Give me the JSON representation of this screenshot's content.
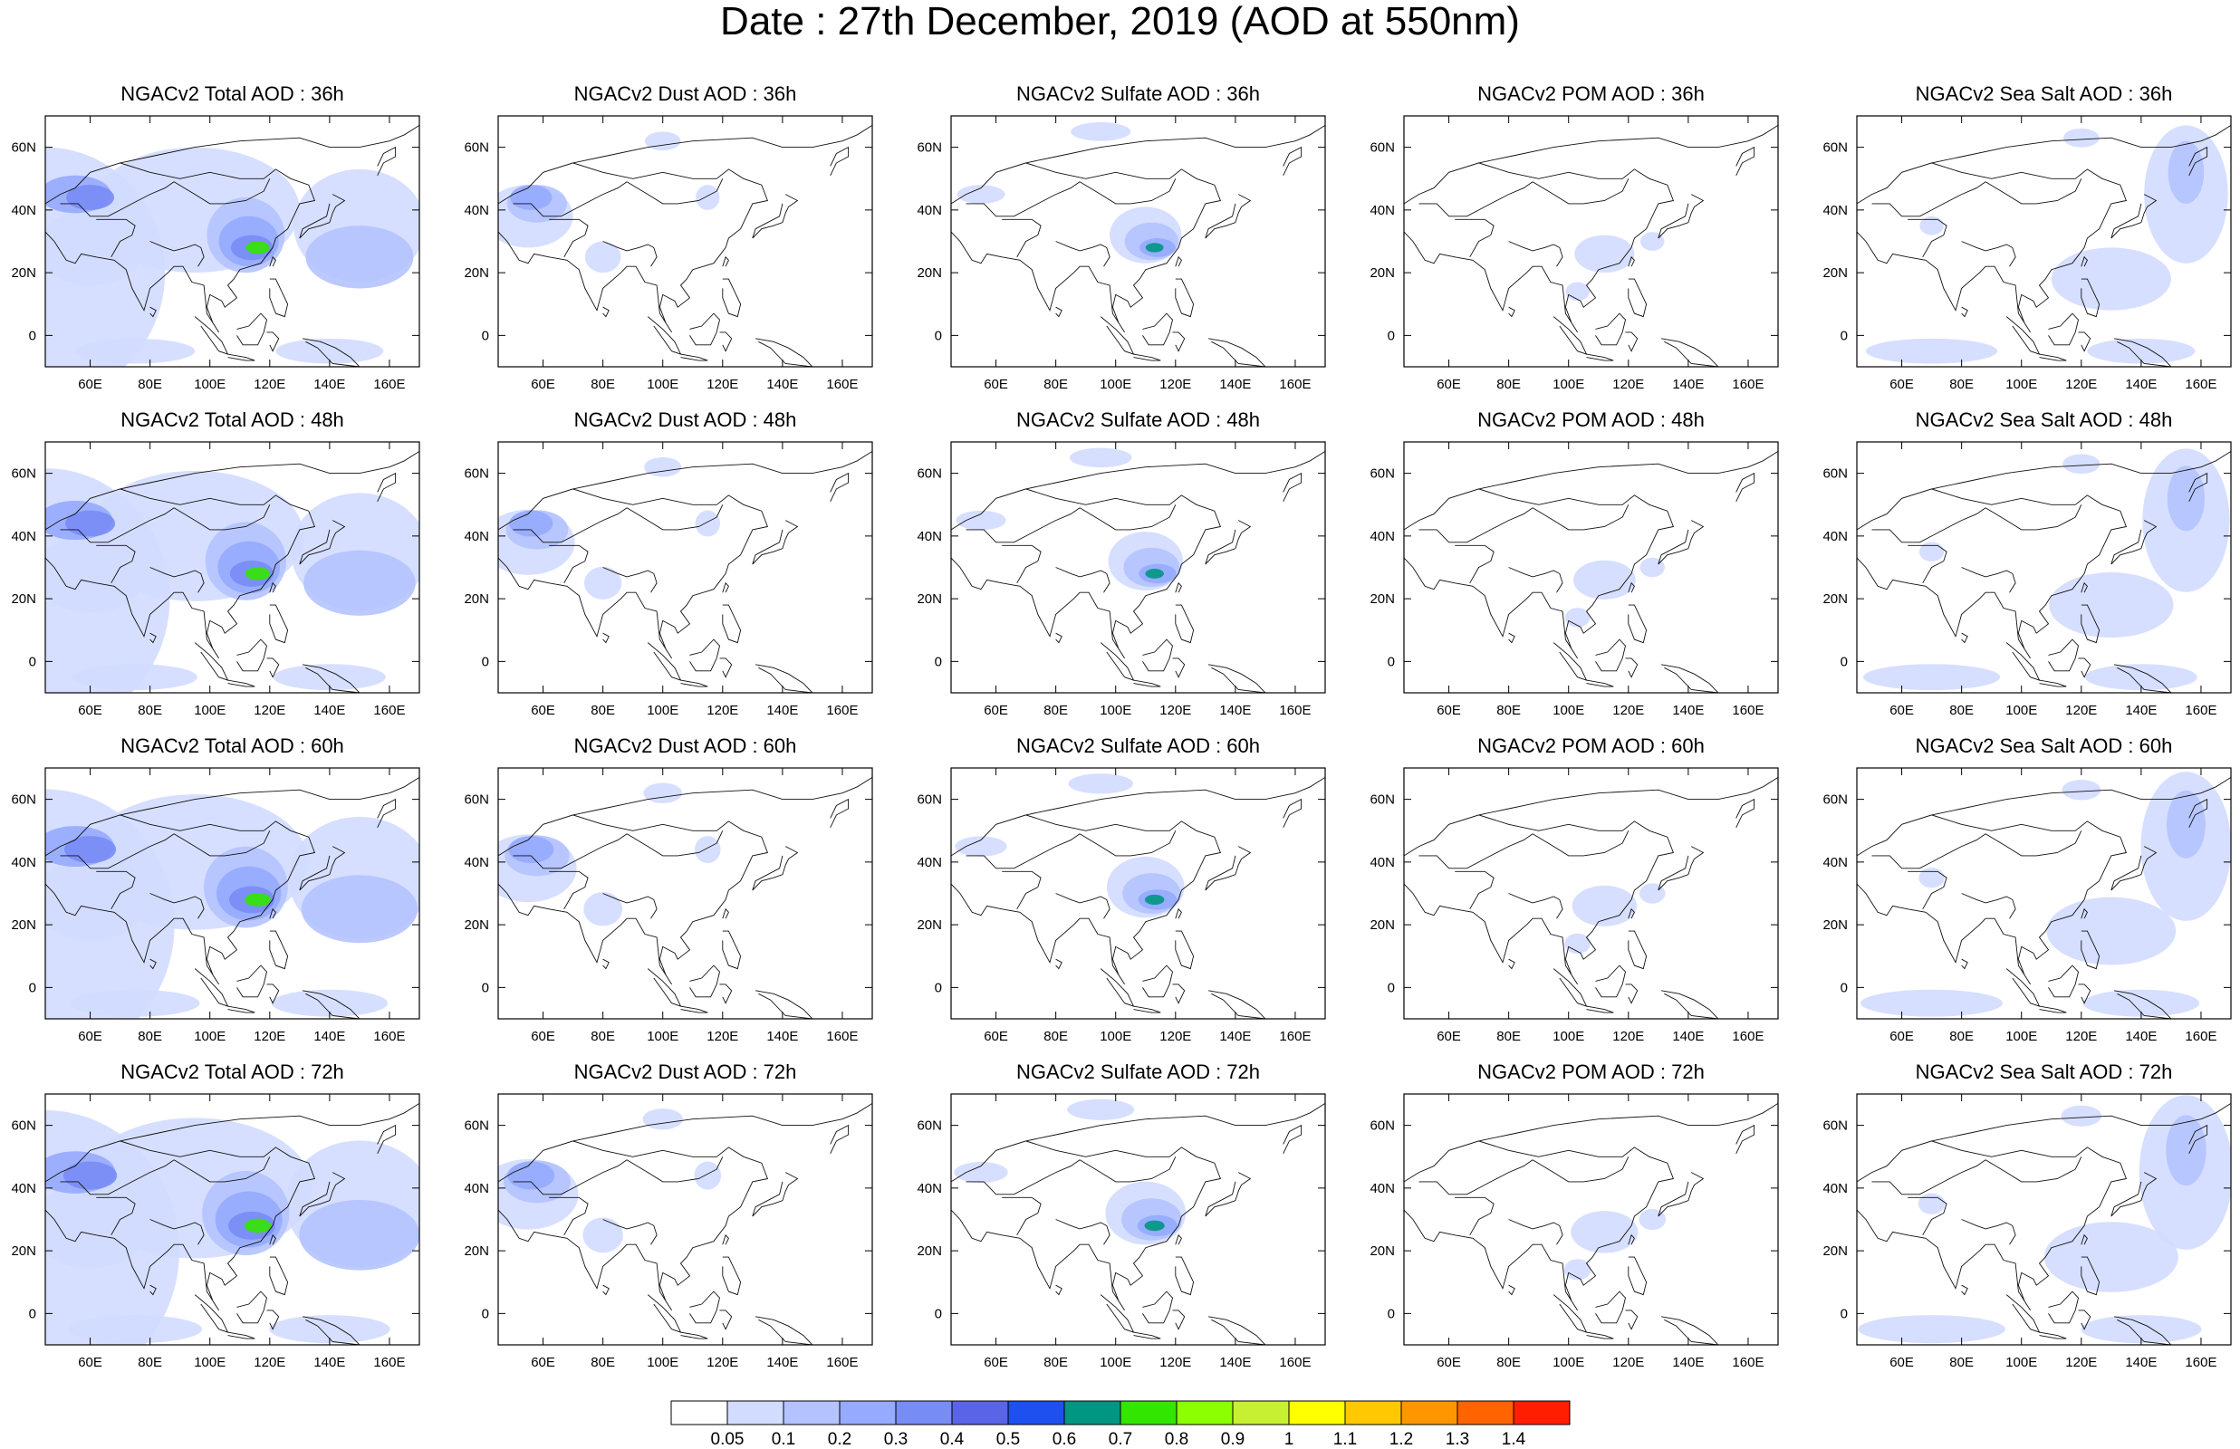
{
  "title": "Date : 27th December, 2019 (AOD at 550nm)",
  "species": [
    "Total",
    "Dust",
    "Sulfate",
    "POM",
    "Sea Salt"
  ],
  "lead_times": [
    "36h",
    "48h",
    "60h",
    "72h"
  ],
  "panels": [
    [
      "NGACv2 Total AOD : 36h",
      "NGACv2 Dust AOD : 36h",
      "NGACv2 Sulfate AOD : 36h",
      "NGACv2 POM AOD : 36h",
      "NGACv2 Sea Salt AOD : 36h"
    ],
    [
      "NGACv2 Total AOD : 48h",
      "NGACv2 Dust AOD : 48h",
      "NGACv2 Sulfate AOD : 48h",
      "NGACv2 POM AOD : 48h",
      "NGACv2 Sea Salt AOD : 48h"
    ],
    [
      "NGACv2 Total AOD : 60h",
      "NGACv2 Dust AOD : 60h",
      "NGACv2 Sulfate AOD : 60h",
      "NGACv2 POM AOD : 60h",
      "NGACv2 Sea Salt AOD : 60h"
    ],
    [
      "NGACv2 Total AOD : 72h",
      "NGACv2 Dust AOD : 72h",
      "NGACv2 Sulfate AOD : 72h",
      "NGACv2 POM AOD : 72h",
      "NGACv2 Sea Salt  AOD : 72h"
    ]
  ],
  "map": {
    "lon_range": [
      45,
      170
    ],
    "lat_range": [
      -10,
      70
    ],
    "x_ticks": [
      "60E",
      "80E",
      "100E",
      "120E",
      "140E",
      "160E"
    ],
    "x_tick_values": [
      60,
      80,
      100,
      120,
      140,
      160
    ],
    "y_ticks": [
      "60N",
      "40N",
      "20N",
      "0"
    ],
    "y_tick_values": [
      60,
      40,
      20,
      0
    ]
  },
  "colorbar": {
    "labels": [
      "0.05",
      "0.1",
      "0.2",
      "0.3",
      "0.4",
      "0.5",
      "0.6",
      "0.7",
      "0.8",
      "0.9",
      "1",
      "1.1",
      "1.2",
      "1.3",
      "1.4"
    ],
    "colors": [
      "#ffffff",
      "#d2dcff",
      "#b4c3ff",
      "#96aaff",
      "#788cf5",
      "#5a64e6",
      "#1e50f0",
      "#009682",
      "#32e600",
      "#8cff00",
      "#c8f032",
      "#ffff00",
      "#ffc800",
      "#ff9600",
      "#ff6400",
      "#ff1e00"
    ]
  }
}
